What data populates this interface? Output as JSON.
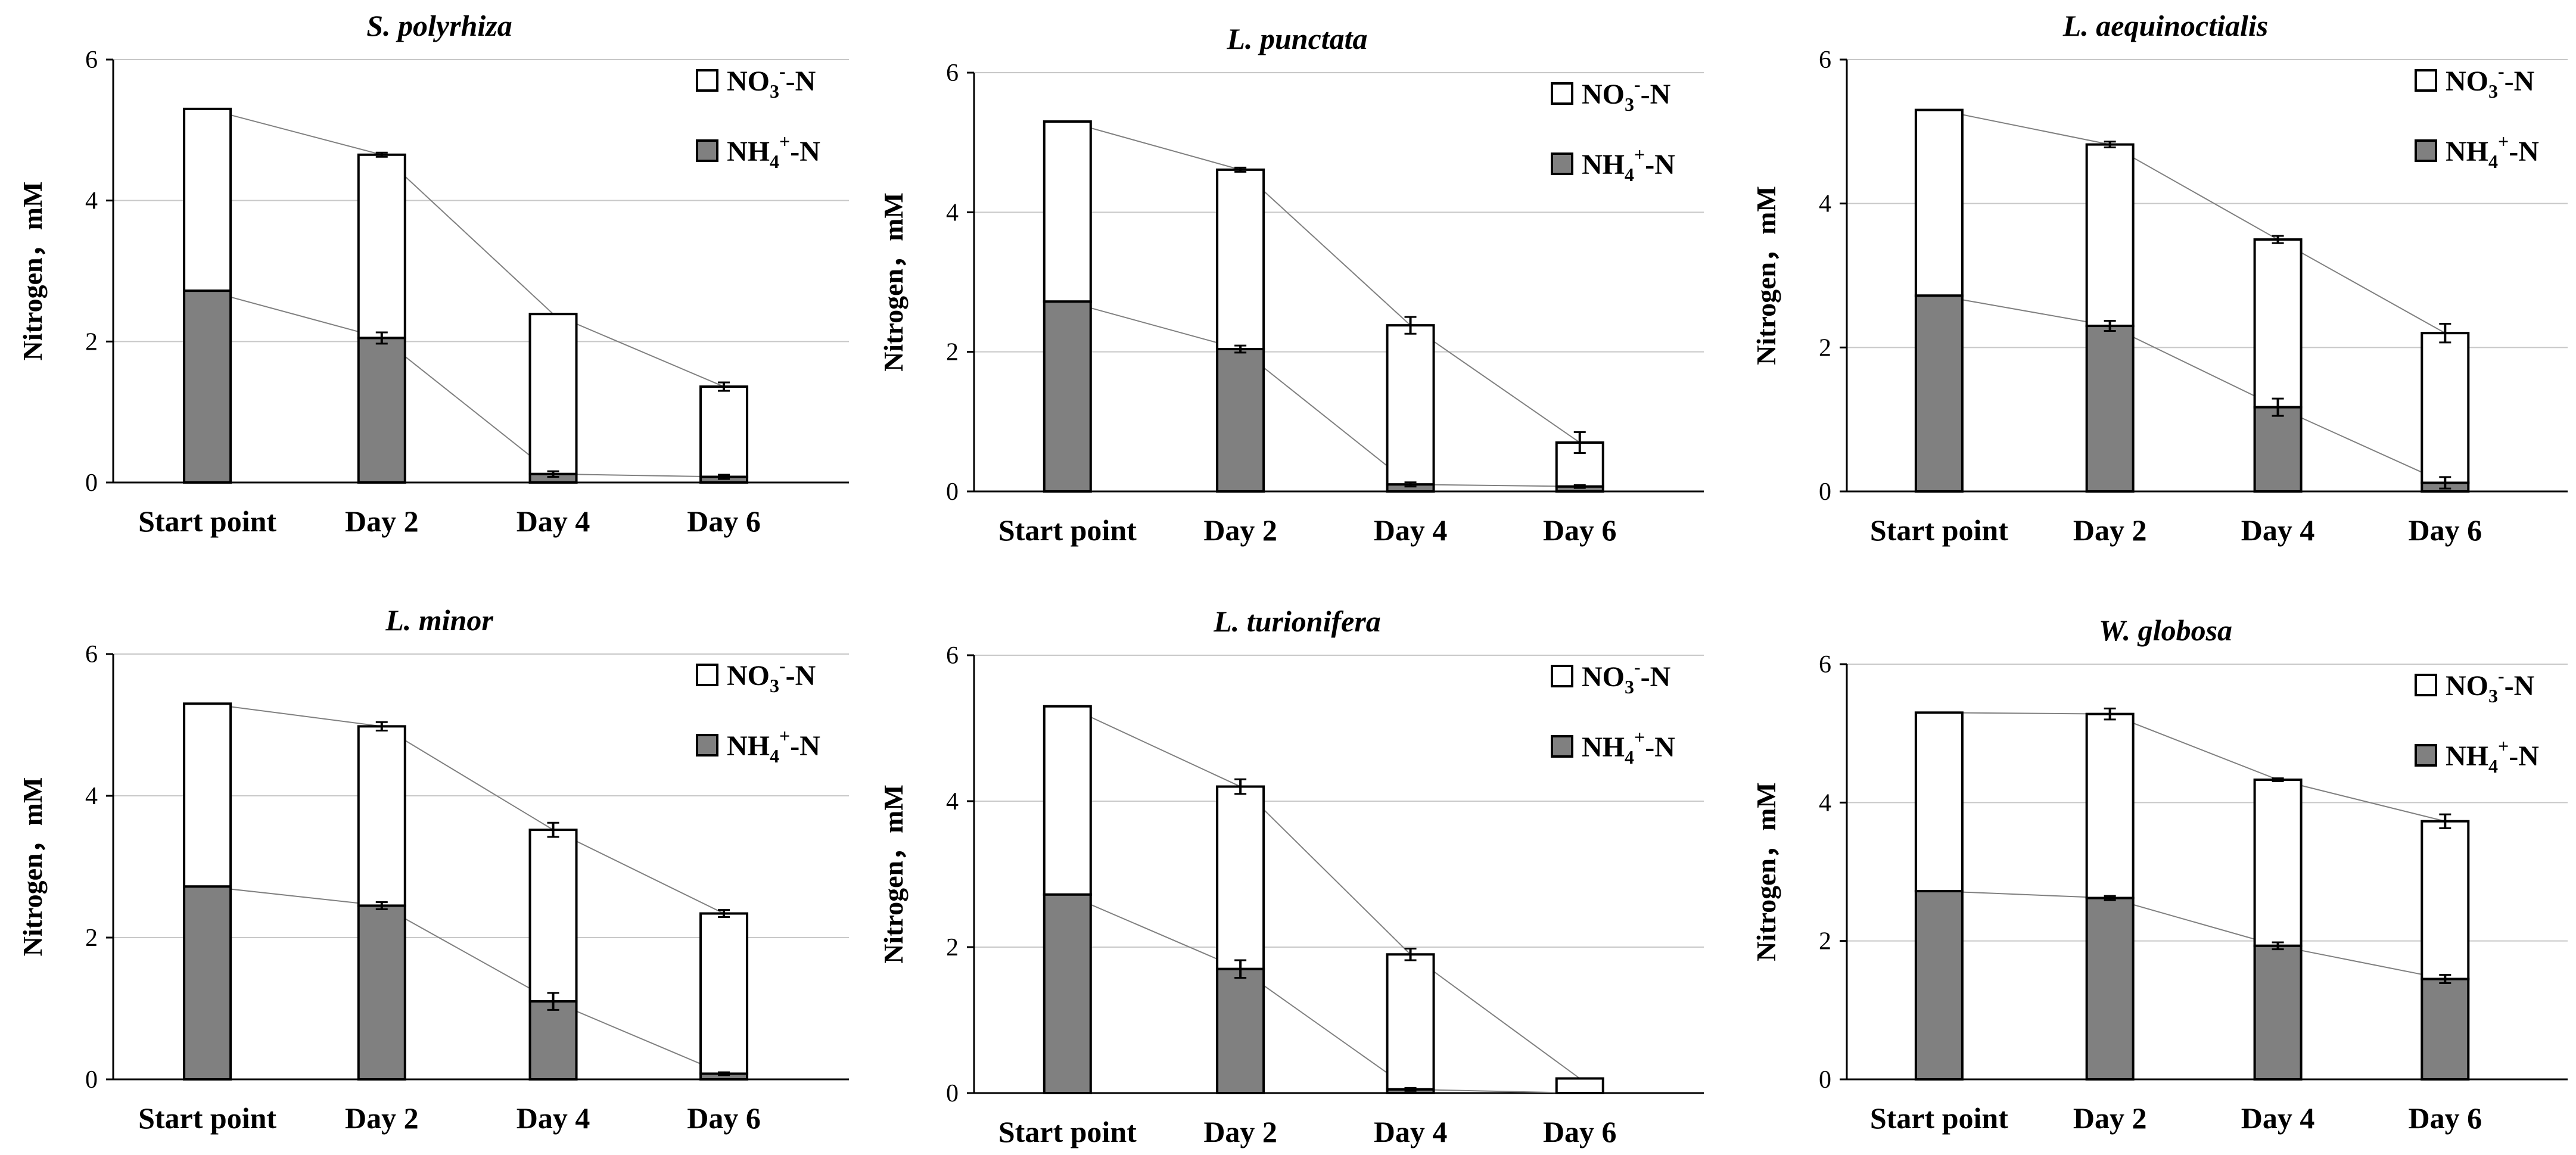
{
  "chart_data": [
    {
      "type": "bar",
      "stacked": true,
      "title": "S. polyrhiza",
      "ylabel": "Nitrogen，mM",
      "ylim": [
        0,
        6
      ],
      "yticks": [
        0,
        2,
        4,
        6
      ],
      "grid": true,
      "legend_position": "top-right",
      "categories": [
        "Start point",
        "Day 2",
        "Day 4",
        "Day 6"
      ],
      "series": [
        {
          "name_parts": [
            "NH",
            "4",
            "+",
            "-N"
          ],
          "color": "#808080",
          "values": [
            2.72,
            2.05,
            0.12,
            0.08
          ],
          "errors": [
            0,
            0.08,
            0.04,
            0.03
          ]
        },
        {
          "name_parts": [
            "NO",
            "3",
            "-",
            "-N"
          ],
          "color": "#ffffff",
          "values": [
            2.58,
            2.6,
            2.27,
            1.28
          ],
          "errors": [
            0,
            0.03,
            0,
            0.06
          ]
        }
      ]
    },
    {
      "type": "bar",
      "stacked": true,
      "title": "L. punctata",
      "ylabel": "Nitrogen，mM",
      "ylim": [
        0,
        6
      ],
      "yticks": [
        0,
        2,
        4,
        6
      ],
      "grid": true,
      "legend_position": "top-right",
      "categories": [
        "Start point",
        "Day 2",
        "Day 4",
        "Day 6"
      ],
      "series": [
        {
          "name_parts": [
            "NH",
            "4",
            "+",
            "-N"
          ],
          "color": "#808080",
          "values": [
            2.72,
            2.04,
            0.1,
            0.07
          ],
          "errors": [
            0,
            0.05,
            0.03,
            0.02
          ]
        },
        {
          "name_parts": [
            "NO",
            "3",
            "-",
            "-N"
          ],
          "color": "#ffffff",
          "values": [
            2.58,
            2.57,
            2.28,
            0.63
          ],
          "errors": [
            0,
            0.03,
            0.12,
            0.15
          ]
        }
      ]
    },
    {
      "type": "bar",
      "stacked": true,
      "title": "L. aequinoctialis",
      "ylabel": "Nitrogen，mM",
      "ylim": [
        0,
        6
      ],
      "yticks": [
        0,
        2,
        4,
        6
      ],
      "grid": true,
      "legend_position": "top-right",
      "categories": [
        "Start point",
        "Day 2",
        "Day 4",
        "Day 6"
      ],
      "series": [
        {
          "name_parts": [
            "NH",
            "4",
            "+",
            "-N"
          ],
          "color": "#808080",
          "values": [
            2.72,
            2.3,
            1.17,
            0.12
          ],
          "errors": [
            0,
            0.07,
            0.12,
            0.08
          ]
        },
        {
          "name_parts": [
            "NO",
            "3",
            "-",
            "-N"
          ],
          "color": "#ffffff",
          "values": [
            2.58,
            2.52,
            2.33,
            2.08
          ],
          "errors": [
            0,
            0.04,
            0.05,
            0.13
          ]
        }
      ]
    },
    {
      "type": "bar",
      "stacked": true,
      "title": "L. minor",
      "ylabel": "Nitrogen，mM",
      "ylim": [
        0,
        6
      ],
      "yticks": [
        0,
        2,
        4,
        6
      ],
      "grid": true,
      "legend_position": "top-right",
      "categories": [
        "Start point",
        "Day 2",
        "Day 4",
        "Day 6"
      ],
      "series": [
        {
          "name_parts": [
            "NH",
            "4",
            "+",
            "-N"
          ],
          "color": "#808080",
          "values": [
            2.72,
            2.45,
            1.1,
            0.08
          ],
          "errors": [
            0,
            0.05,
            0.12,
            0.02
          ]
        },
        {
          "name_parts": [
            "NO",
            "3",
            "-",
            "-N"
          ],
          "color": "#ffffff",
          "values": [
            2.58,
            2.53,
            2.42,
            2.26
          ],
          "errors": [
            0,
            0.06,
            0.1,
            0.05
          ]
        }
      ]
    },
    {
      "type": "bar",
      "stacked": true,
      "title": "L. turionifera",
      "ylabel": "Nitrogen，mM",
      "ylim": [
        0,
        6
      ],
      "yticks": [
        0,
        2,
        4,
        6
      ],
      "grid": true,
      "legend_position": "top-right",
      "categories": [
        "Start point",
        "Day 2",
        "Day 4",
        "Day 6"
      ],
      "series": [
        {
          "name_parts": [
            "NH",
            "4",
            "+",
            "-N"
          ],
          "color": "#808080",
          "values": [
            2.72,
            1.7,
            0.05,
            0.0
          ],
          "errors": [
            0,
            0.12,
            0.02,
            0
          ]
        },
        {
          "name_parts": [
            "NO",
            "3",
            "-",
            "-N"
          ],
          "color": "#ffffff",
          "values": [
            2.58,
            2.5,
            1.85,
            0.2
          ],
          "errors": [
            0,
            0.1,
            0.08,
            0
          ]
        }
      ]
    },
    {
      "type": "bar",
      "stacked": true,
      "title": "W. globosa",
      "ylabel": "Nitrogen，mM",
      "ylim": [
        0,
        6
      ],
      "yticks": [
        0,
        2,
        4,
        6
      ],
      "grid": true,
      "legend_position": "top-right",
      "categories": [
        "Start point",
        "Day 2",
        "Day 4",
        "Day 6"
      ],
      "series": [
        {
          "name_parts": [
            "NH",
            "4",
            "+",
            "-N"
          ],
          "color": "#808080",
          "values": [
            2.72,
            2.62,
            1.93,
            1.45
          ],
          "errors": [
            0,
            0.03,
            0.05,
            0.06
          ]
        },
        {
          "name_parts": [
            "NO",
            "3",
            "-",
            "-N"
          ],
          "color": "#ffffff",
          "values": [
            2.58,
            2.66,
            2.4,
            2.28
          ],
          "errors": [
            0,
            0.08,
            0.02,
            0.1
          ]
        }
      ]
    }
  ]
}
